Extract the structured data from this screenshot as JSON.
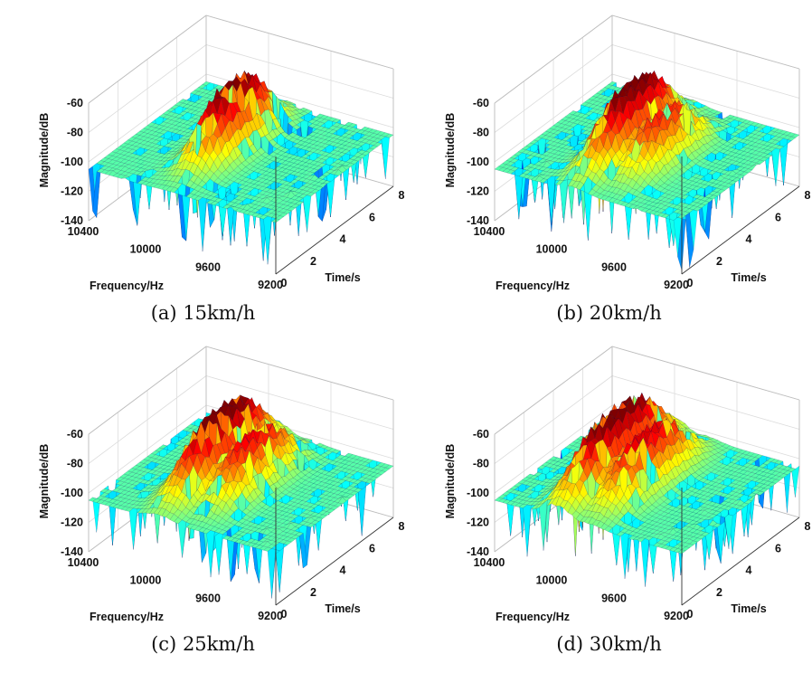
{
  "chart_data": [
    {
      "type": "surface",
      "panel_label": "(a)",
      "caption_value": "15km/h",
      "xlabel": "Frequency/Hz",
      "ylabel": "Time/s",
      "zlabel": "Magnitude/dB",
      "freq_ticks": [
        "10400",
        "10000",
        "9600",
        "9200"
      ],
      "time_ticks": [
        "0",
        "2",
        "4",
        "6",
        "8"
      ],
      "mag_ticks": [
        "-60",
        "-80",
        "-100",
        "-120",
        "-140"
      ],
      "xlim": [
        9200,
        10400
      ],
      "ylim": [
        0,
        8
      ],
      "zlim": [
        -140,
        -60
      ],
      "colormap": "jet",
      "peak_db": -60,
      "peak_ridges": [
        {
          "freq": 9880,
          "time_start": 2.0,
          "time_end": 6.5,
          "db": -62
        }
      ],
      "floor_db": [
        -140,
        -100
      ]
    },
    {
      "type": "surface",
      "panel_label": "(b)",
      "caption_value": "20km/h",
      "xlabel": "Frequency/Hz",
      "ylabel": "Time/s",
      "zlabel": "Magnitude/dB",
      "freq_ticks": [
        "10400",
        "10000",
        "9600",
        "9200"
      ],
      "time_ticks": [
        "0",
        "2",
        "4",
        "6",
        "8"
      ],
      "mag_ticks": [
        "-60",
        "-80",
        "-100",
        "-120",
        "-140"
      ],
      "xlim": [
        9200,
        10400
      ],
      "ylim": [
        0,
        8
      ],
      "zlim": [
        -140,
        -60
      ],
      "colormap": "jet",
      "peak_db": -60,
      "peak_ridges": [
        {
          "freq": 9900,
          "time_start": 1.5,
          "time_end": 6.5,
          "db": -61
        },
        {
          "freq": 9700,
          "time_start": 2.0,
          "time_end": 6.0,
          "db": -75
        }
      ],
      "floor_db": [
        -140,
        -100
      ]
    },
    {
      "type": "surface",
      "panel_label": "(c)",
      "caption_value": "25km/h",
      "xlabel": "Frequency/Hz",
      "ylabel": "Time/s",
      "zlabel": "Magnitude/dB",
      "freq_ticks": [
        "10400",
        "10000",
        "9600",
        "9200"
      ],
      "time_ticks": [
        "0",
        "2",
        "4",
        "6",
        "8"
      ],
      "mag_ticks": [
        "-60",
        "-80",
        "-100",
        "-120",
        "-140"
      ],
      "xlim": [
        9200,
        10400
      ],
      "ylim": [
        0,
        8
      ],
      "zlim": [
        -140,
        -60
      ],
      "colormap": "jet",
      "peak_db": -60,
      "peak_ridges": [
        {
          "freq": 9950,
          "time_start": 1.5,
          "time_end": 7.0,
          "db": -60
        },
        {
          "freq": 9750,
          "time_start": 2.0,
          "time_end": 6.5,
          "db": -72
        }
      ],
      "floor_db": [
        -140,
        -100
      ]
    },
    {
      "type": "surface",
      "panel_label": "(d)",
      "caption_value": "30km/h",
      "xlabel": "Frequency/Hz",
      "ylabel": "Time/s",
      "zlabel": "Magnitude/dB",
      "freq_ticks": [
        "10400",
        "10000",
        "9600",
        "9200"
      ],
      "time_ticks": [
        "0",
        "2",
        "4",
        "6",
        "8"
      ],
      "mag_ticks": [
        "-60",
        "-80",
        "-100",
        "-120",
        "-140"
      ],
      "xlim": [
        9200,
        10400
      ],
      "ylim": [
        0,
        8
      ],
      "zlim": [
        -140,
        -60
      ],
      "colormap": "jet",
      "peak_db": -60,
      "peak_ridges": [
        {
          "freq": 10000,
          "time_start": 1.0,
          "time_end": 7.0,
          "db": -60
        },
        {
          "freq": 9800,
          "time_start": 1.5,
          "time_end": 6.5,
          "db": -70
        }
      ],
      "floor_db": [
        -140,
        -100
      ]
    }
  ]
}
